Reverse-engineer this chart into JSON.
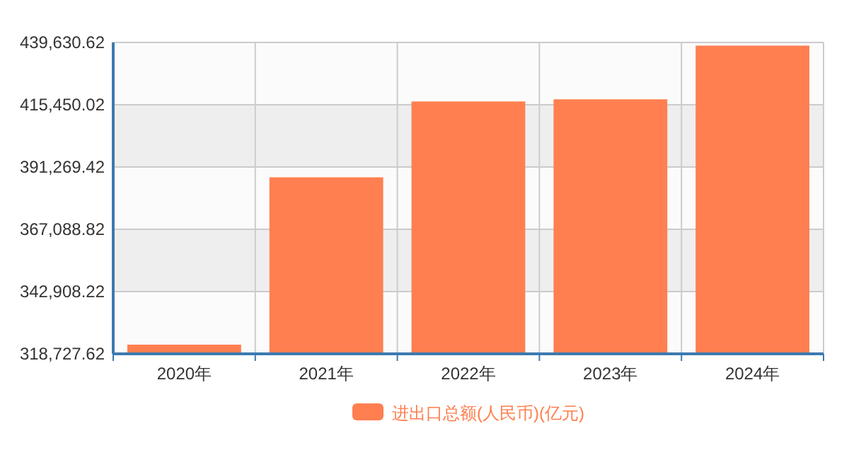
{
  "chart_data": {
    "type": "bar",
    "categories": [
      "2020年",
      "2021年",
      "2022年",
      "2023年",
      "2024年"
    ],
    "series": [
      {
        "name": "进出口总额(人民币)(亿元)",
        "color": "#ff7f50",
        "values": [
          322300,
          387280,
          416720,
          417560,
          438400
        ]
      }
    ],
    "ylim": [
      318727.62,
      439630.62
    ],
    "yticks": [
      {
        "value": 318727.62,
        "label": "318,727.62"
      },
      {
        "value": 342908.22,
        "label": "342,908.22"
      },
      {
        "value": 367088.82,
        "label": "367,088.82"
      },
      {
        "value": 391269.42,
        "label": "391,269.42"
      },
      {
        "value": 415450.02,
        "label": "415,450.02"
      },
      {
        "value": 439630.62,
        "label": "439,630.62"
      }
    ],
    "grid": true,
    "legend": "bottom"
  }
}
